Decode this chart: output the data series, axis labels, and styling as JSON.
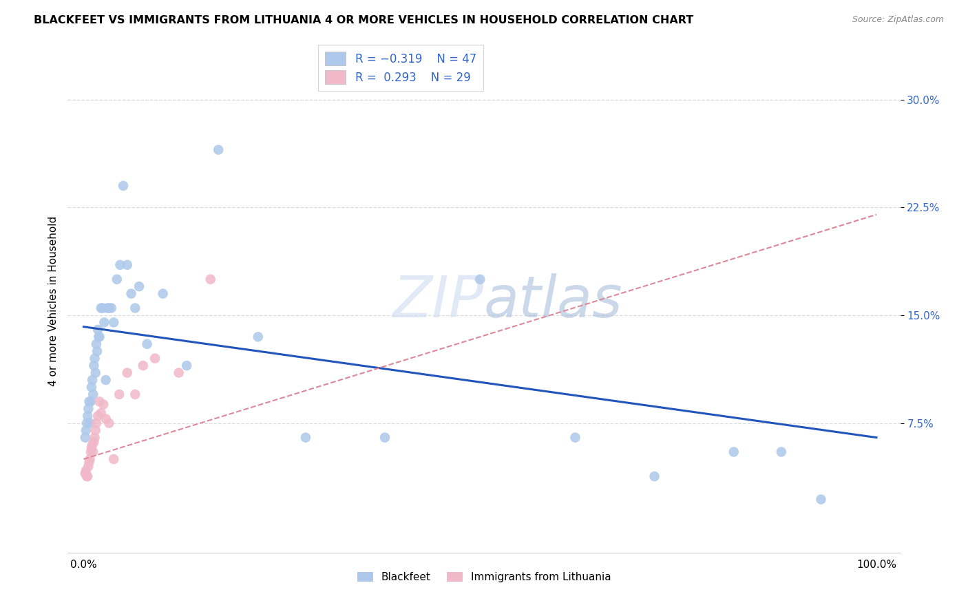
{
  "title": "BLACKFEET VS IMMIGRANTS FROM LITHUANIA 4 OR MORE VEHICLES IN HOUSEHOLD CORRELATION CHART",
  "source": "Source: ZipAtlas.com",
  "ylabel": "4 or more Vehicles in Household",
  "yticks": [
    0.075,
    0.15,
    0.225,
    0.3
  ],
  "ytick_labels": [
    "7.5%",
    "15.0%",
    "22.5%",
    "30.0%"
  ],
  "xticks": [
    0.0,
    0.2,
    0.4,
    0.6,
    0.8,
    1.0
  ],
  "xtick_labels": [
    "0.0%",
    "",
    "",
    "",
    "",
    "100.0%"
  ],
  "xlim": [
    -0.02,
    1.03
  ],
  "ylim": [
    -0.015,
    0.335
  ],
  "blue_color": "#adc8ea",
  "pink_color": "#f0b8c8",
  "blue_line_color": "#2255bb",
  "pink_line_color": "#dd8899",
  "legend_text_color": "#3366cc",
  "grid_color": "#dddddd",
  "watermark_color": "#c8d8f0",
  "blackfeet_x": [
    0.002,
    0.003,
    0.004,
    0.005,
    0.006,
    0.007,
    0.008,
    0.009,
    0.01,
    0.011,
    0.012,
    0.013,
    0.014,
    0.015,
    0.016,
    0.017,
    0.018,
    0.019,
    0.02,
    0.022,
    0.024,
    0.026,
    0.028,
    0.03,
    0.032,
    0.035,
    0.038,
    0.042,
    0.046,
    0.05,
    0.055,
    0.06,
    0.065,
    0.07,
    0.08,
    0.1,
    0.13,
    0.17,
    0.22,
    0.28,
    0.38,
    0.5,
    0.62,
    0.72,
    0.82,
    0.88,
    0.93
  ],
  "blackfeet_y": [
    0.065,
    0.07,
    0.075,
    0.08,
    0.085,
    0.09,
    0.075,
    0.09,
    0.1,
    0.105,
    0.095,
    0.115,
    0.12,
    0.11,
    0.13,
    0.125,
    0.14,
    0.135,
    0.135,
    0.155,
    0.155,
    0.145,
    0.105,
    0.155,
    0.155,
    0.155,
    0.145,
    0.175,
    0.185,
    0.24,
    0.185,
    0.165,
    0.155,
    0.17,
    0.13,
    0.165,
    0.115,
    0.265,
    0.135,
    0.065,
    0.065,
    0.175,
    0.065,
    0.038,
    0.055,
    0.055,
    0.022
  ],
  "lithuania_x": [
    0.002,
    0.003,
    0.004,
    0.005,
    0.006,
    0.007,
    0.008,
    0.009,
    0.01,
    0.011,
    0.012,
    0.013,
    0.014,
    0.015,
    0.016,
    0.018,
    0.02,
    0.022,
    0.025,
    0.028,
    0.032,
    0.038,
    0.045,
    0.055,
    0.065,
    0.075,
    0.09,
    0.12,
    0.16
  ],
  "lithuania_y": [
    0.04,
    0.042,
    0.038,
    0.038,
    0.045,
    0.048,
    0.05,
    0.055,
    0.058,
    0.06,
    0.055,
    0.062,
    0.065,
    0.07,
    0.075,
    0.08,
    0.09,
    0.082,
    0.088,
    0.078,
    0.075,
    0.05,
    0.095,
    0.11,
    0.095,
    0.115,
    0.12,
    0.11,
    0.175
  ],
  "bf_line_x0": 0.0,
  "bf_line_x1": 1.0,
  "bf_line_y0": 0.142,
  "bf_line_y1": 0.065,
  "lt_line_x0": 0.0,
  "lt_line_x1": 1.0,
  "lt_line_y0": 0.05,
  "lt_line_y1": 0.22
}
